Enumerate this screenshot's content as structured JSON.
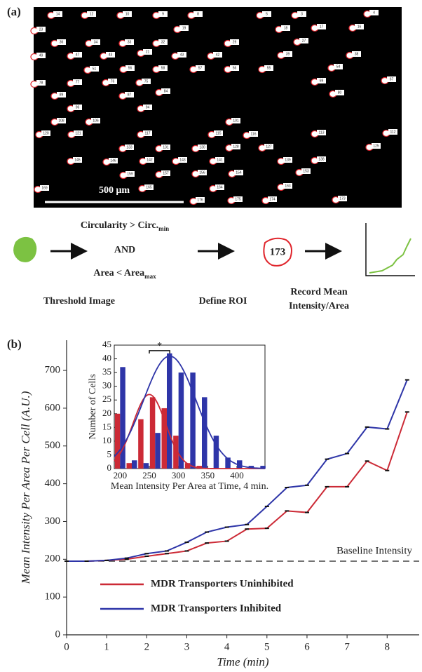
{
  "panel_a": {
    "label": "(a)",
    "cell_ids": [
      "14",
      "12",
      "10",
      "9",
      "8",
      "5",
      "3",
      "4",
      "23",
      "19",
      "18",
      "17",
      "16",
      "36",
      "34",
      "33",
      "32",
      "29",
      "27",
      "21",
      "49",
      "47",
      "43",
      "43",
      "42",
      "39",
      "38",
      "51",
      "56",
      "58",
      "57",
      "56",
      "55",
      "54",
      "67",
      "78",
      "77",
      "76",
      "75",
      "69",
      "84",
      "80",
      "89",
      "87",
      "96",
      "94",
      "108",
      "106",
      "101",
      "120",
      "121",
      "117",
      "115",
      "116",
      "113",
      "112",
      "133",
      "131",
      "130",
      "128",
      "127",
      "125",
      "145",
      "146",
      "142",
      "143",
      "141",
      "139",
      "138",
      "159",
      "157",
      "156",
      "154",
      "153",
      "169",
      "165",
      "164",
      "163",
      "176",
      "175",
      "174",
      "173"
    ],
    "scale_bar": "500 μm",
    "condition1": {
      "text": "Circularity > Circ.",
      "sub": "min"
    },
    "and": "AND",
    "condition2": {
      "text": "Area < Area",
      "sub": "max"
    },
    "roi_label": "173",
    "steps": [
      "Threshold Image",
      "Define ROI"
    ],
    "record_step": [
      "Record Mean",
      "Intensity/Area"
    ]
  },
  "chart_data": [
    {
      "type": "line",
      "panel_label": "(b)",
      "x_label": "Time (min)",
      "y_label": "Mean Intensity Per Area Per Cell (A.U.)",
      "x": [
        0,
        0.5,
        1,
        1.5,
        2,
        2.5,
        3,
        3.5,
        4,
        4.5,
        5,
        5.5,
        6,
        6.5,
        7,
        7.5,
        8,
        8.5
      ],
      "series": [
        {
          "name": "MDR Transporters Uninhibited",
          "color": "#cc2a36",
          "values": [
            195,
            195,
            197,
            200,
            208,
            215,
            222,
            243,
            248,
            280,
            282,
            328,
            324,
            392,
            392,
            460,
            435,
            590
          ]
        },
        {
          "name": "MDR Transporters Inhibited",
          "color": "#2e35a8",
          "values": [
            195,
            195,
            197,
            203,
            215,
            222,
            245,
            272,
            285,
            292,
            340,
            390,
            396,
            465,
            480,
            550,
            545,
            675
          ]
        }
      ],
      "baseline": 195,
      "baseline_label": "Baseline Intensity",
      "xlim": [
        0,
        8.8
      ],
      "ylim": [
        0,
        780
      ],
      "xticks": [
        0,
        1,
        2,
        3,
        4,
        5,
        6,
        7,
        8
      ],
      "yticks": [
        0,
        100,
        200,
        300,
        400,
        500,
        600,
        700
      ],
      "legend": "lower-left"
    },
    {
      "type": "bar",
      "x_label": "Mean Intensity Per Area at Time, 4 min.",
      "y_label": "Number of Cells",
      "x": [
        200,
        220,
        240,
        260,
        280,
        300,
        320,
        340,
        360,
        380,
        400,
        420,
        440
      ],
      "series": [
        {
          "name": null,
          "color": "#cc2a36",
          "values": [
            20,
            2,
            18,
            26,
            22,
            12,
            2,
            1,
            0,
            0,
            0,
            0,
            0
          ],
          "fit": {
            "mean": 250,
            "sd": 28,
            "amplitude": 27
          }
        },
        {
          "name": null,
          "color": "#2e35a8",
          "values": [
            37,
            3,
            2,
            13,
            42,
            35,
            35,
            26,
            12,
            4,
            3,
            1,
            1
          ],
          "fit": {
            "mean": 285,
            "sd": 45,
            "amplitude": 41
          }
        }
      ],
      "significance": {
        "label": "*",
        "x": [
          250,
          285
        ],
        "y": 43
      },
      "xlim": [
        190,
        448
      ],
      "ylim": [
        0,
        45
      ],
      "xticks": [
        200,
        250,
        300,
        350,
        400
      ],
      "yticks": [
        0,
        5,
        10,
        15,
        20,
        25,
        30,
        35,
        40,
        45
      ]
    }
  ]
}
